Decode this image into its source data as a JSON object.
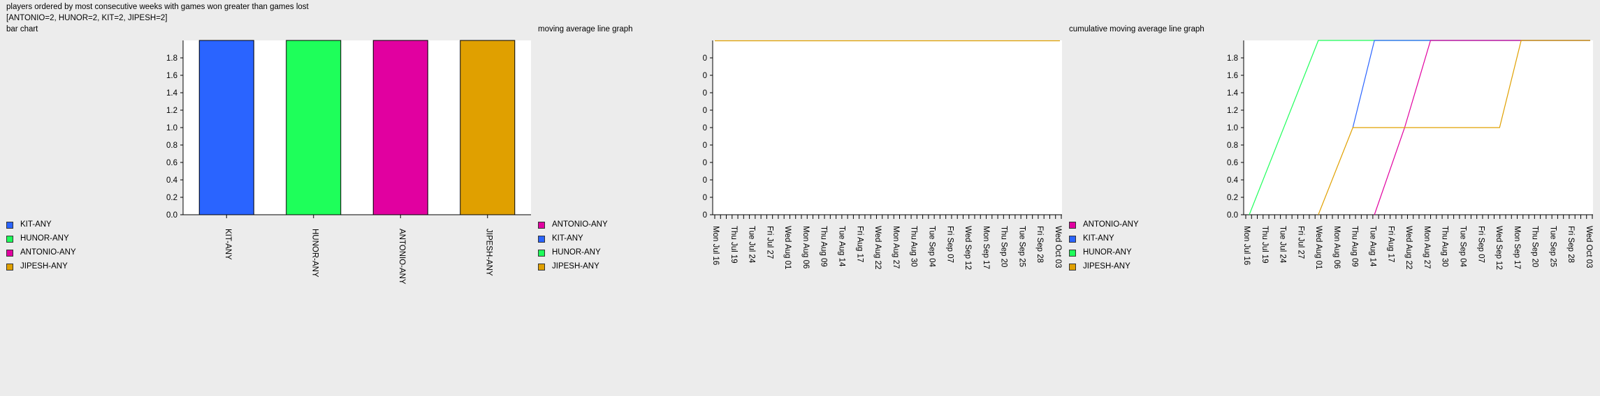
{
  "header": {
    "title": "players ordered by most consecutive weeks with games won greater than games lost",
    "summary": "[ANTONIO=2, HUNOR=2, KIT=2, JIPESH=2]"
  },
  "colors": {
    "ANTONIO-ANY": "#e100a0",
    "KIT-ANY": "#2a64ff",
    "HUNOR-ANY": "#1eff5a",
    "JIPESH-ANY": "#e0a000"
  },
  "date_ticks": [
    "Mon Jul 16",
    "Thu Jul 19",
    "Tue Jul 24",
    "Fri Jul 27",
    "Wed Aug 01",
    "Mon Aug 06",
    "Thu Aug 09",
    "Tue Aug 14",
    "Fri Aug 17",
    "Wed Aug 22",
    "Mon Aug 27",
    "Thu Aug 30",
    "Tue Sep 04",
    "Fri Sep 07",
    "Wed Sep 12",
    "Mon Sep 17",
    "Thu Sep 20",
    "Tue Sep 25",
    "Fri Sep 28",
    "Wed Oct 03"
  ],
  "chart_data": [
    {
      "type": "bar",
      "label": "bar chart",
      "categories": [
        "KIT-ANY",
        "HUNOR-ANY",
        "ANTONIO-ANY",
        "JIPESH-ANY"
      ],
      "values": [
        2,
        2,
        2,
        2
      ],
      "yticks": [
        "0.0",
        "0.2",
        "0.4",
        "0.6",
        "0.8",
        "1.0",
        "1.2",
        "1.4",
        "1.6",
        "1.8"
      ],
      "ylim": [
        0,
        2
      ],
      "legend": [
        "KIT-ANY",
        "HUNOR-ANY",
        "ANTONIO-ANY",
        "JIPESH-ANY"
      ]
    },
    {
      "type": "line",
      "label": "moving average line graph",
      "yticks": [
        "0",
        "0",
        "0",
        "0",
        "0",
        "0",
        "0",
        "0",
        "0",
        "0"
      ],
      "legend": [
        "ANTONIO-ANY",
        "KIT-ANY",
        "HUNOR-ANY",
        "JIPESH-ANY"
      ],
      "series": [
        {
          "name": "JIPESH-ANY",
          "points": [
            [
              "Mon Jul 16",
              2
            ],
            [
              "Wed Oct 03",
              2
            ]
          ]
        }
      ]
    },
    {
      "type": "line",
      "label": "cumulative moving average line graph",
      "yticks": [
        "0.0",
        "0.2",
        "0.4",
        "0.6",
        "0.8",
        "1.0",
        "1.2",
        "1.4",
        "1.6",
        "1.8"
      ],
      "ylim": [
        0,
        2
      ],
      "legend": [
        "ANTONIO-ANY",
        "KIT-ANY",
        "HUNOR-ANY",
        "JIPESH-ANY"
      ],
      "series": [
        {
          "name": "HUNOR-ANY",
          "points": [
            [
              "Mon Jul 16",
              0
            ],
            [
              "Wed Aug 01",
              2
            ],
            [
              "Wed Oct 03",
              2
            ]
          ]
        },
        {
          "name": "KIT-ANY",
          "points": [
            [
              "Thu Aug 09",
              1
            ],
            [
              "Tue Aug 14",
              2
            ],
            [
              "Wed Oct 03",
              2
            ]
          ]
        },
        {
          "name": "ANTONIO-ANY",
          "points": [
            [
              "Tue Aug 14",
              0
            ],
            [
              "Tue Aug 21",
              1
            ],
            [
              "Mon Aug 27",
              2
            ],
            [
              "Wed Oct 03",
              2
            ]
          ]
        },
        {
          "name": "JIPESH-ANY",
          "points": [
            [
              "Wed Aug 01",
              0
            ],
            [
              "Thu Aug 09",
              1
            ],
            [
              "Wed Sep 12",
              1
            ],
            [
              "Mon Sep 17",
              2
            ],
            [
              "Wed Oct 03",
              2
            ]
          ]
        }
      ]
    }
  ]
}
